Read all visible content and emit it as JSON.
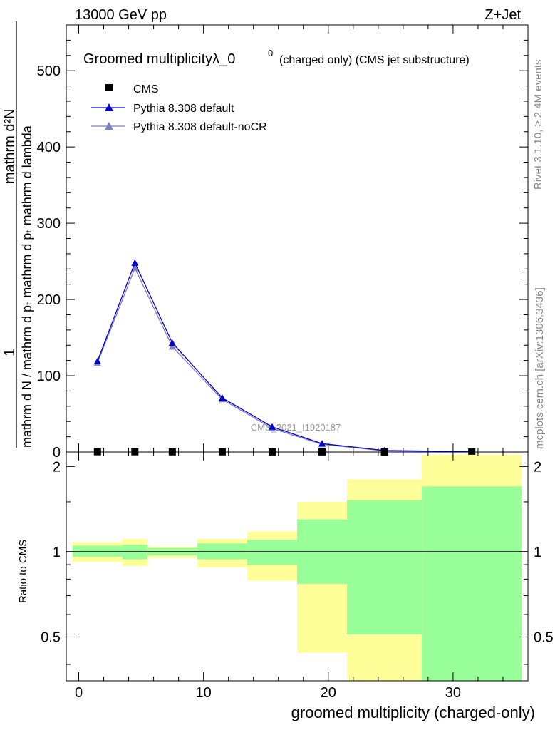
{
  "header": {
    "left": "13000 GeV pp",
    "right": "Z+Jet"
  },
  "side_labels": {
    "rivet": "Rivet 3.1.10, ≥ 2.4M events",
    "mcplots": "mcplots.cern.ch [arXiv:1306.3436]"
  },
  "chart_data": [
    {
      "type": "line",
      "title_main": "Groomed multiplicityλ_0",
      "title_sup": "0",
      "title_sub": "(charged only) (CMS jet substructure)",
      "watermark": "CMS_2021_I1920187",
      "ylabel_numerator": "mathrm d²N",
      "ylabel_denominator": "mathrm d N / mathrm d pₜ mathrm d pₜ mathrm d lambda",
      "ylabel_one": "1",
      "xlim": [
        -1,
        36
      ],
      "ylim": [
        0,
        560
      ],
      "yticks": [
        0,
        100,
        200,
        300,
        400,
        500
      ],
      "ytick_labels": [
        "0",
        "100",
        "200",
        "300",
        "400",
        "500"
      ],
      "legend_position": "top-left",
      "series": [
        {
          "name": "CMS",
          "color": "#000000",
          "marker": "square",
          "x": [
            1.5,
            4.5,
            7.5,
            11.5,
            15.5,
            19.5,
            24.5,
            31.5
          ],
          "y": [
            0.3,
            0.3,
            0.2,
            0.2,
            0.1,
            0.1,
            0.05,
            0.02
          ]
        },
        {
          "name": "Pythia 8.308 default",
          "color": "#0000cc",
          "marker": "triangle",
          "x": [
            1.5,
            4.5,
            7.5,
            11.5,
            15.5,
            19.5,
            24.5,
            31.5
          ],
          "y": [
            119,
            248,
            143,
            71,
            33,
            11,
            2,
            0.5
          ]
        },
        {
          "name": "Pythia 8.308 default-noCR",
          "color": "#7f7fbf",
          "marker": "triangle",
          "x": [
            1.5,
            4.5,
            7.5,
            11.5,
            15.5,
            19.5,
            24.5,
            31.5
          ],
          "y": [
            117,
            241,
            138,
            69,
            31,
            10,
            1.6,
            0.4
          ]
        }
      ]
    },
    {
      "type": "bar",
      "ylabel": "Ratio to CMS",
      "xlabel": "groomed multiplicity (charged-only)",
      "xlim": [
        -1,
        36
      ],
      "ylim": [
        0.35,
        2.25
      ],
      "yticks": [
        0.5,
        1,
        2
      ],
      "ytick_labels": [
        "0.5",
        "1",
        "2"
      ],
      "xticks": [
        0,
        10,
        20,
        30
      ],
      "xtick_labels": [
        "0",
        "10",
        "20",
        "30"
      ],
      "reference_line": 1,
      "bins": [
        {
          "x_low": -0.5,
          "x_high": 3.5,
          "green": [
            0.96,
            1.05
          ],
          "yellow": [
            0.92,
            1.08
          ]
        },
        {
          "x_low": 3.5,
          "x_high": 5.5,
          "green": [
            0.94,
            1.06
          ],
          "yellow": [
            0.89,
            1.11
          ]
        },
        {
          "x_low": 5.5,
          "x_high": 9.5,
          "green": [
            0.97,
            1.03
          ],
          "yellow": [
            0.95,
            1.04
          ]
        },
        {
          "x_low": 9.5,
          "x_high": 13.5,
          "green": [
            0.94,
            1.07
          ],
          "yellow": [
            0.88,
            1.11
          ]
        },
        {
          "x_low": 13.5,
          "x_high": 17.5,
          "green": [
            0.9,
            1.1
          ],
          "yellow": [
            0.79,
            1.18
          ]
        },
        {
          "x_low": 17.5,
          "x_high": 21.5,
          "green": [
            0.77,
            1.3
          ],
          "yellow": [
            0.44,
            1.5
          ]
        },
        {
          "x_low": 21.5,
          "x_high": 27.5,
          "green": [
            0.51,
            1.52
          ],
          "yellow": [
            0.3,
            1.8
          ]
        },
        {
          "x_low": 27.5,
          "x_high": 35.5,
          "green": [
            0.3,
            1.7
          ],
          "yellow": [
            0.3,
            2.2
          ]
        }
      ]
    }
  ]
}
